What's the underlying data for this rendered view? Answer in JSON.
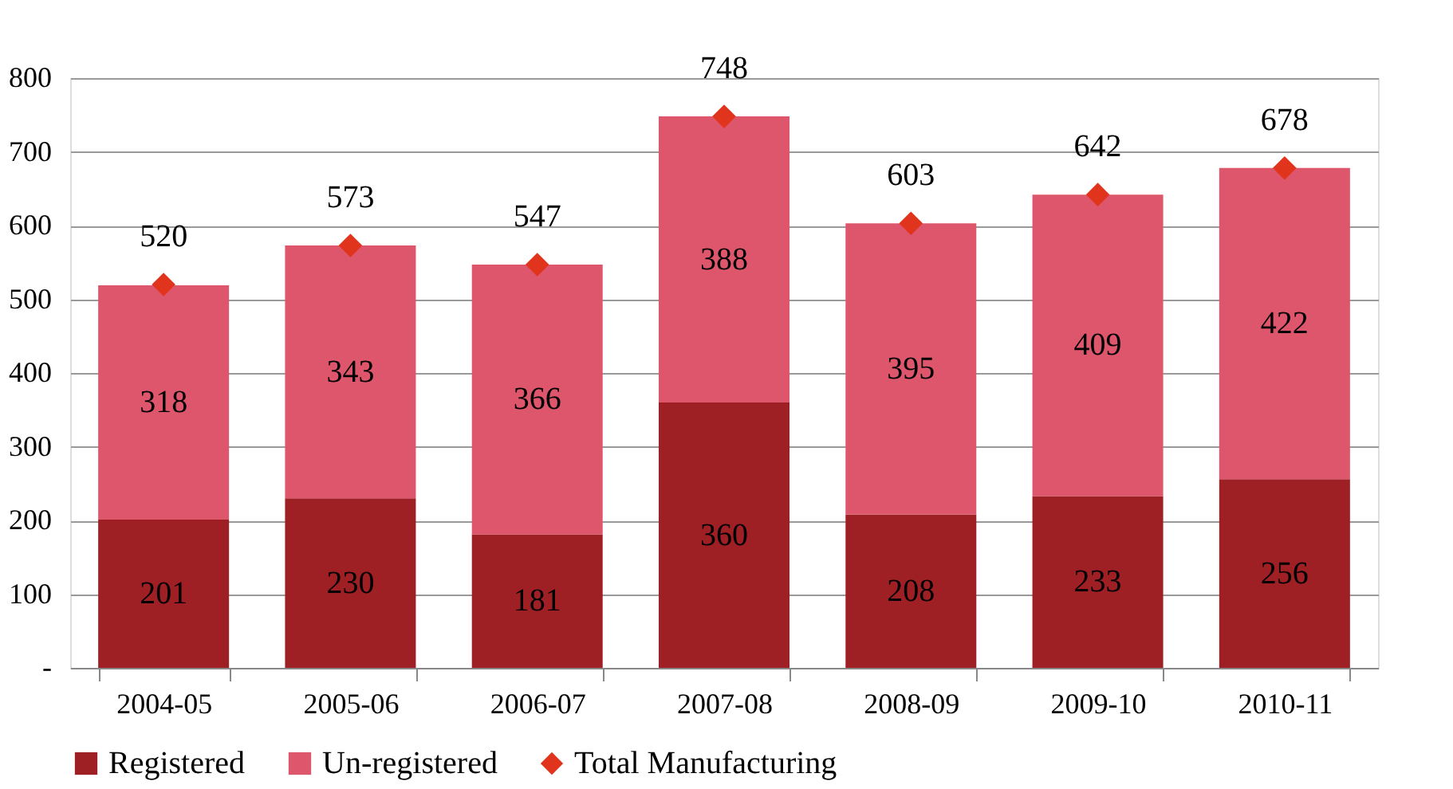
{
  "chart_data": {
    "type": "bar",
    "stacked": true,
    "categories": [
      "2004-05",
      "2005-06",
      "2006-07",
      "2007-08",
      "2008-09",
      "2009-10",
      "2010-11"
    ],
    "series": [
      {
        "name": "Registered",
        "color": "#9e1f24",
        "values": [
          201,
          230,
          181,
          360,
          208,
          233,
          256
        ]
      },
      {
        "name": "Un-registered",
        "color": "#de566c",
        "values": [
          318,
          343,
          366,
          388,
          395,
          409,
          422
        ]
      },
      {
        "name": "Total Manufacturing",
        "type": "scatter",
        "marker": "diamond",
        "color": "#e0341c",
        "values": [
          520,
          573,
          547,
          748,
          603,
          642,
          678
        ]
      }
    ],
    "ylim": [
      0,
      800
    ],
    "yticks": [
      {
        "value": 0,
        "label": "-"
      },
      100,
      200,
      300,
      400,
      500,
      600,
      700,
      800
    ],
    "grid": "y",
    "legend": "bottom",
    "data_labels": true
  }
}
